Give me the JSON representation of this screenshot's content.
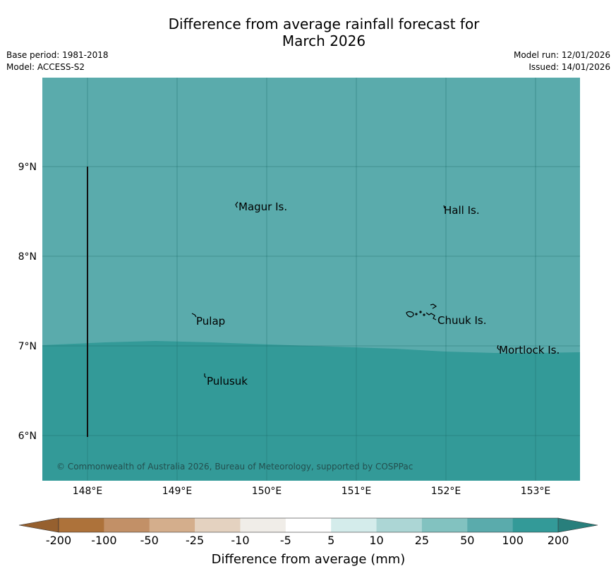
{
  "title": {
    "line1": "Difference from average rainfall forecast for",
    "line2": "March 2026"
  },
  "meta": {
    "base_period": "Base period: 1981-2018",
    "model": "Model: ACCESS-S2",
    "model_run": "Model run: 12/01/2026",
    "issued": "Issued: 14/01/2026"
  },
  "map": {
    "lat_labels": [
      "9°N",
      "8°N",
      "7°N",
      "6°N"
    ],
    "lon_labels": [
      "148°E",
      "149°E",
      "150°E",
      "151°E",
      "152°E",
      "153°E"
    ],
    "places": [
      "Magur Is.",
      "Hall Is.",
      "Pulap",
      "Chuuk Is.",
      "Mortlock Is.",
      "Pulusuk"
    ],
    "copyright": "© Commonwealth of Australia 2026, Bureau of Meteorology, supported by COSPPac",
    "colors": {
      "category_50_100": "#5aabac",
      "category_100_200": "#339a98"
    }
  },
  "legend": {
    "tick_labels": [
      "-200",
      "-100",
      "-50",
      "-25",
      "-10",
      "-5",
      "5",
      "10",
      "25",
      "50",
      "100",
      "200"
    ],
    "colors": [
      "#ad723a",
      "#c29067",
      "#d4ae8c",
      "#e4d2c0",
      "#f0ede8",
      "#ffffff",
      "#d4eceb",
      "#acd6d5",
      "#82c2c0",
      "#5aabac",
      "#339a98"
    ],
    "extend_low_color": "#96602f",
    "extend_high_color": "#287f7c",
    "label": "Difference from average (mm)"
  }
}
